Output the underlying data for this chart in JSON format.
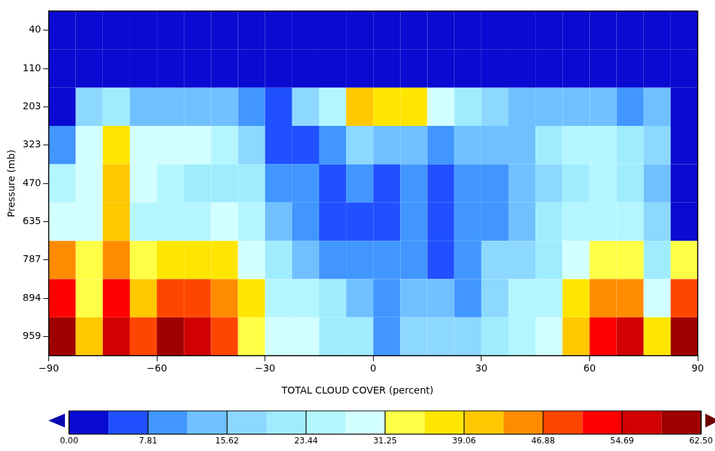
{
  "chart_data": {
    "type": "heatmap",
    "ylabel": "Pressure (mb)",
    "clabel": "TOTAL CLOUD COVER (percent)",
    "x": [
      -86.25,
      -78.75,
      -71.25,
      -63.75,
      -56.25,
      -48.75,
      -41.25,
      -33.75,
      -26.25,
      -18.75,
      -11.25,
      -3.75,
      3.75,
      11.25,
      18.75,
      26.25,
      33.75,
      41.25,
      48.75,
      56.25,
      63.75,
      71.25,
      78.75,
      86.25
    ],
    "xlim": [
      -90,
      90
    ],
    "xticks": [
      -90,
      -60,
      -30,
      0,
      30,
      60,
      90
    ],
    "y_categories": [
      "40",
      "110",
      "203",
      "323",
      "470",
      "635",
      "787",
      "894",
      "959"
    ],
    "cells": [
      [
        2.0,
        2.0,
        2.0,
        2.0,
        2.0,
        2.0,
        2.0,
        2.0,
        2.0,
        2.0,
        2.0,
        2.0,
        2.0,
        2.0,
        2.0,
        2.0,
        2.0,
        2.0,
        2.0,
        2.0,
        2.0,
        2.0,
        2.0,
        2.0
      ],
      [
        2.0,
        2.0,
        2.0,
        2.0,
        2.0,
        2.0,
        2.0,
        2.0,
        2.0,
        2.0,
        2.0,
        2.0,
        2.0,
        2.0,
        2.0,
        2.0,
        2.0,
        2.0,
        2.0,
        2.0,
        2.0,
        2.0,
        2.0,
        2.0
      ],
      [
        2.0,
        17.6,
        21.5,
        13.7,
        13.7,
        13.7,
        13.7,
        9.8,
        5.9,
        17.6,
        25.4,
        41.0,
        37.1,
        37.1,
        29.3,
        21.5,
        17.6,
        13.7,
        13.7,
        13.7,
        13.7,
        9.8,
        13.7,
        2.0
      ],
      [
        9.8,
        29.3,
        37.1,
        29.3,
        29.3,
        29.3,
        25.4,
        17.6,
        5.9,
        5.9,
        9.8,
        17.6,
        13.7,
        13.7,
        9.8,
        13.7,
        13.7,
        13.7,
        21.5,
        25.4,
        25.4,
        21.5,
        17.6,
        2.0
      ],
      [
        25.4,
        29.3,
        41.0,
        29.3,
        25.4,
        21.5,
        21.5,
        21.5,
        9.8,
        9.8,
        5.9,
        9.8,
        5.9,
        9.8,
        5.9,
        9.8,
        9.8,
        13.7,
        17.6,
        21.5,
        25.4,
        21.5,
        13.7,
        2.0
      ],
      [
        29.3,
        29.3,
        41.0,
        25.4,
        25.4,
        25.4,
        29.3,
        25.4,
        13.7,
        9.8,
        5.9,
        5.9,
        5.9,
        9.8,
        5.9,
        9.8,
        9.8,
        13.7,
        21.5,
        25.4,
        25.4,
        25.4,
        17.6,
        2.0
      ],
      [
        44.9,
        33.2,
        44.9,
        33.2,
        37.1,
        37.1,
        37.1,
        29.3,
        21.5,
        13.7,
        9.8,
        9.8,
        9.8,
        9.8,
        5.9,
        9.8,
        17.6,
        17.6,
        21.5,
        29.3,
        33.2,
        33.2,
        21.5,
        33.2
      ],
      [
        52.7,
        33.2,
        52.7,
        41.0,
        48.8,
        48.8,
        44.9,
        37.1,
        25.4,
        25.4,
        21.5,
        13.7,
        9.8,
        13.7,
        13.7,
        9.8,
        17.6,
        25.4,
        25.4,
        37.1,
        44.9,
        44.9,
        29.3,
        48.8
      ],
      [
        60.5,
        41.0,
        56.6,
        48.8,
        60.5,
        56.6,
        48.8,
        33.2,
        29.3,
        29.3,
        21.5,
        21.5,
        9.8,
        17.6,
        17.6,
        17.6,
        21.5,
        25.4,
        29.3,
        41.0,
        52.7,
        56.6,
        37.1,
        60.5
      ]
    ],
    "clim": [
      0,
      62.5
    ],
    "cticks": [
      {
        "value": 0,
        "label": "0.00"
      },
      {
        "value": 7.8125,
        "label": "7.81"
      },
      {
        "value": 15.625,
        "label": "15.62"
      },
      {
        "value": 23.4375,
        "label": "23.44"
      },
      {
        "value": 31.25,
        "label": "31.25"
      },
      {
        "value": 39.0625,
        "label": "39.06"
      },
      {
        "value": 46.875,
        "label": "46.88"
      },
      {
        "value": 54.6875,
        "label": "54.69"
      },
      {
        "value": 62.5,
        "label": "62.50"
      }
    ],
    "colors": [
      "#0a0ad2",
      "#2050ff",
      "#4196ff",
      "#70c0ff",
      "#8cd8ff",
      "#a0ecff",
      "#b4f6ff",
      "#d2ffff",
      "#ffff46",
      "#ffe600",
      "#ffc800",
      "#ff8c00",
      "#ff4600",
      "#ff0000",
      "#d20000",
      "#a00000"
    ]
  }
}
